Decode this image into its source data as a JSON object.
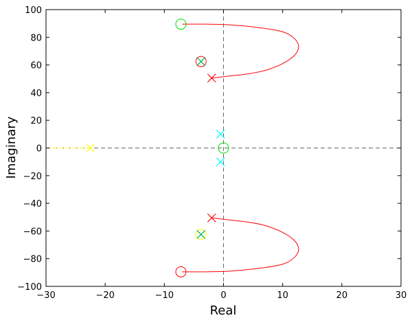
{
  "chart_data": {
    "type": "scatter",
    "title": "",
    "xlabel": "Real",
    "ylabel": "Imaginary",
    "xlim": [
      -30,
      30
    ],
    "ylim": [
      -100,
      100
    ],
    "xticks": [
      -30,
      -20,
      -10,
      0,
      10,
      20,
      30
    ],
    "yticks": [
      -100,
      -80,
      -60,
      -40,
      -20,
      0,
      20,
      40,
      60,
      80,
      100
    ],
    "xtick_labels": [
      "−30",
      "−20",
      "−10",
      "0",
      "10",
      "20",
      "30"
    ],
    "ytick_labels": [
      "−100",
      "−80",
      "−60",
      "−40",
      "−20",
      "0",
      "20",
      "40",
      "60",
      "80",
      "100"
    ],
    "grid": false,
    "reference_lines": {
      "x": 0,
      "y": 0,
      "color": "#666666",
      "style": "dashed"
    },
    "branches": [
      {
        "color": "#ff0000",
        "points": [
          [
            -2,
            50.5
          ],
          [
            1,
            52
          ],
          [
            4,
            53.5
          ],
          [
            7,
            56
          ],
          [
            10,
            61
          ],
          [
            12,
            67
          ],
          [
            12.7,
            73
          ],
          [
            12,
            79
          ],
          [
            10,
            84
          ],
          [
            6,
            87
          ],
          [
            1,
            89
          ],
          [
            -3,
            89.5
          ],
          [
            -7,
            89.5
          ]
        ]
      },
      {
        "color": "#ff0000",
        "points": [
          [
            -2,
            -50.5
          ],
          [
            1,
            -52
          ],
          [
            4,
            -53.5
          ],
          [
            7,
            -56
          ],
          [
            10,
            -61
          ],
          [
            12,
            -67
          ],
          [
            12.7,
            -73
          ],
          [
            12,
            -79
          ],
          [
            10,
            -84
          ],
          [
            6,
            -87
          ],
          [
            1,
            -89
          ],
          [
            -3,
            -89.5
          ],
          [
            -7,
            -89.5
          ]
        ]
      },
      {
        "color": "#ffff00",
        "style": "dashed",
        "points": [
          [
            -22.5,
            0
          ],
          [
            -30,
            0
          ]
        ]
      }
    ],
    "poles": [
      {
        "x": -2,
        "y": 50.5,
        "color": "#ff0000"
      },
      {
        "x": -2,
        "y": -50.5,
        "color": "#ff0000"
      },
      {
        "x": -3.8,
        "y": 62.5,
        "color": "#00b050"
      },
      {
        "x": -3.8,
        "y": -62.5,
        "color": "#00b050"
      },
      {
        "x": -0.5,
        "y": 10,
        "color": "#00ffff"
      },
      {
        "x": -0.5,
        "y": -10,
        "color": "#00ffff"
      },
      {
        "x": -22.5,
        "y": 0,
        "color": "#ffff00"
      }
    ],
    "zeros": [
      {
        "x": -7.2,
        "y": 89.5,
        "color": "#00dd00"
      },
      {
        "x": -7.2,
        "y": -89.5,
        "color": "#ff0000"
      },
      {
        "x": -3.8,
        "y": 62.5,
        "color": "#ff0000"
      },
      {
        "x": -3.8,
        "y": -62.5,
        "color": "#ffff00"
      },
      {
        "x": 0,
        "y": 0,
        "color": "#00dd00"
      }
    ]
  }
}
